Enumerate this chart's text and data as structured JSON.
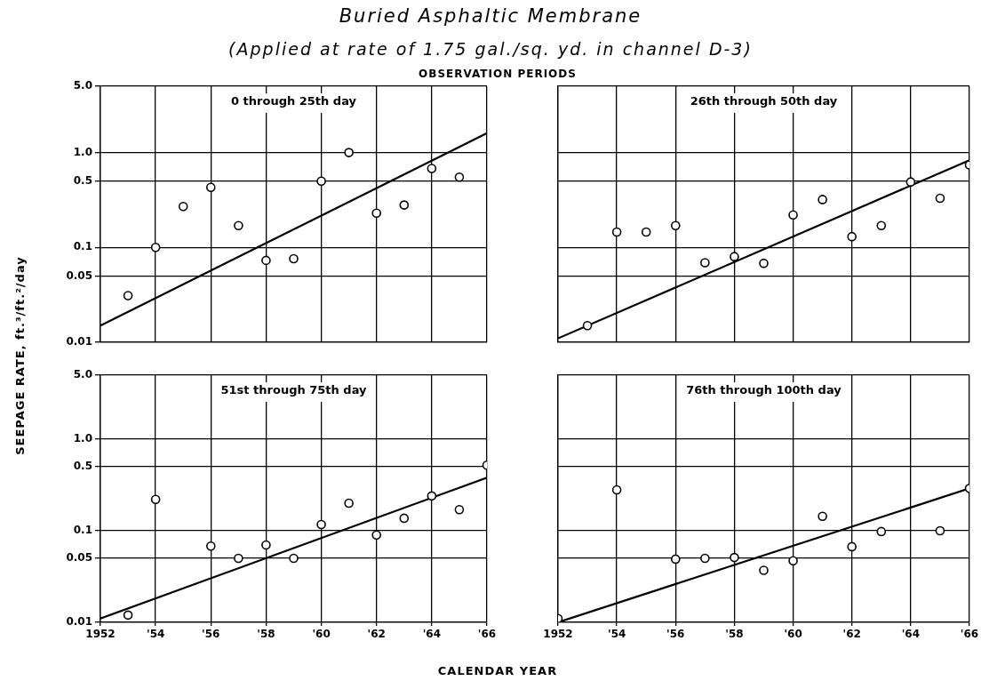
{
  "chart_data": [
    {
      "type": "scatter",
      "title": "Buried Asphaltic Membrane",
      "subtitle": "(Applied at rate of 1.75 gal./sq. yd. in channel D-3)",
      "ylabel": "SEEPAGE RATE, ft.³/ft.²/day",
      "annotations": [
        "OBSERVATION PERIODS",
        "0 through 25th day"
      ],
      "log": "y",
      "grid": true,
      "legend": false,
      "line_style": "solid",
      "tick_labels": "y",
      "xlim": [
        1952,
        1966
      ],
      "xticks": [
        {
          "value": 1952,
          "label": null
        },
        {
          "value": 1954,
          "label": null
        },
        {
          "value": 1956,
          "label": null
        },
        {
          "value": 1958,
          "label": null
        },
        {
          "value": 1960,
          "label": null
        },
        {
          "value": 1962,
          "label": null
        },
        {
          "value": 1964,
          "label": null
        },
        {
          "value": 1966,
          "label": null
        }
      ],
      "ylim": [
        0.01,
        5
      ],
      "yticks": [
        0.01,
        0.05,
        0.1,
        0.5,
        {
          "value": 1,
          "label": "1.0"
        },
        {
          "value": 5,
          "label": "5.0"
        }
      ],
      "series": [
        {
          "marker": "circle",
          "color": "#000000",
          "x": [
            1953,
            1954,
            1955,
            1956,
            1957,
            1958,
            1959,
            1960,
            1961,
            1962,
            1963,
            1964,
            1965
          ],
          "values": [
            0.031,
            0.1,
            0.27,
            0.43,
            0.17,
            0.073,
            0.076,
            0.5,
            1.0,
            0.23,
            0.28,
            0.68,
            0.55
          ]
        },
        {
          "type": "line",
          "marker": "none",
          "color": "#000000",
          "x": [
            1952,
            1966
          ],
          "values": [
            0.015,
            1.6
          ]
        }
      ]
    },
    {
      "type": "scatter",
      "annotations": [
        "26th through 50th day"
      ],
      "log": "y",
      "grid": true,
      "legend": false,
      "line_style": "solid",
      "tick_labels": false,
      "xlim": [
        1952,
        1966
      ],
      "xticks": [
        {
          "value": 1952,
          "label": null
        },
        {
          "value": 1954,
          "label": null
        },
        {
          "value": 1956,
          "label": null
        },
        {
          "value": 1958,
          "label": null
        },
        {
          "value": 1960,
          "label": null
        },
        {
          "value": 1962,
          "label": null
        },
        {
          "value": 1964,
          "label": null
        },
        {
          "value": 1966,
          "label": null
        }
      ],
      "ylim": [
        0.01,
        5
      ],
      "yticks": [
        {
          "value": 0.01,
          "label": null
        },
        {
          "value": 0.05,
          "label": null
        },
        {
          "value": 0.1,
          "label": null
        },
        {
          "value": 0.5,
          "label": null
        },
        {
          "value": 1,
          "label": null
        },
        {
          "value": 5,
          "label": null
        }
      ],
      "series": [
        {
          "marker": "circle",
          "color": "#000000",
          "x": [
            1953,
            1954,
            1955,
            1956,
            1957,
            1958,
            1959,
            1960,
            1961,
            1962,
            1963,
            1964,
            1965,
            1966
          ],
          "values": [
            0.015,
            0.145,
            0.145,
            0.17,
            0.069,
            0.08,
            0.068,
            0.22,
            0.32,
            0.13,
            0.17,
            0.49,
            0.33,
            0.74
          ]
        },
        {
          "type": "line",
          "marker": "none",
          "color": "#000000",
          "x": [
            1952,
            1966
          ],
          "values": [
            0.011,
            0.83
          ]
        }
      ]
    },
    {
      "type": "scatter",
      "xlabel": "CALENDAR YEAR",
      "annotations": [
        "51st through 75th day"
      ],
      "log": "y",
      "grid": true,
      "legend": false,
      "line_style": "solid",
      "xlim": [
        1952,
        1966
      ],
      "xticks": [
        1952,
        {
          "value": 1954,
          "label": "'54"
        },
        {
          "value": 1956,
          "label": "'56"
        },
        {
          "value": 1958,
          "label": "'58"
        },
        {
          "value": 1960,
          "label": "'60"
        },
        {
          "value": 1962,
          "label": "'62"
        },
        {
          "value": 1964,
          "label": "'64"
        },
        {
          "value": 1966,
          "label": "'66"
        }
      ],
      "ylim": [
        0.01,
        5
      ],
      "yticks": [
        0.01,
        0.05,
        0.1,
        0.5,
        {
          "value": 1,
          "label": "1.0"
        },
        {
          "value": 5,
          "label": "5.0"
        }
      ],
      "series": [
        {
          "marker": "circle",
          "color": "#000000",
          "x": [
            1953,
            1954,
            1956,
            1957,
            1958,
            1959,
            1960,
            1961,
            1962,
            1963,
            1964,
            1965,
            1966
          ],
          "values": [
            0.012,
            0.22,
            0.068,
            0.05,
            0.07,
            0.05,
            0.117,
            0.2,
            0.09,
            0.137,
            0.24,
            0.17,
            0.52
          ]
        },
        {
          "type": "line",
          "marker": "none",
          "color": "#000000",
          "x": [
            1952,
            1966
          ],
          "values": [
            0.011,
            0.38
          ]
        }
      ]
    },
    {
      "type": "scatter",
      "annotations": [
        "76th through 100th day"
      ],
      "log": "y",
      "grid": true,
      "legend": false,
      "line_style": "solid",
      "tick_labels": "x",
      "xlim": [
        1952,
        1966
      ],
      "xticks": [
        1952,
        {
          "value": 1954,
          "label": "'54"
        },
        {
          "value": 1956,
          "label": "'56"
        },
        {
          "value": 1958,
          "label": "'58"
        },
        {
          "value": 1960,
          "label": "'60"
        },
        {
          "value": 1962,
          "label": "'62"
        },
        {
          "value": 1964,
          "label": "'64"
        },
        {
          "value": 1966,
          "label": "'66"
        }
      ],
      "ylim": [
        0.01,
        5
      ],
      "yticks": [
        {
          "value": 0.01,
          "label": null
        },
        {
          "value": 0.05,
          "label": null
        },
        {
          "value": 0.1,
          "label": null
        },
        {
          "value": 0.5,
          "label": null
        },
        {
          "value": 1,
          "label": null
        },
        {
          "value": 5,
          "label": null
        }
      ],
      "series": [
        {
          "marker": "circle",
          "color": "#000000",
          "x": [
            1952,
            1954,
            1956,
            1957,
            1958,
            1959,
            1960,
            1961,
            1962,
            1963,
            1965,
            1966
          ],
          "values": [
            0.011,
            0.28,
            0.049,
            0.05,
            0.051,
            0.037,
            0.047,
            0.144,
            0.067,
            0.098,
            0.1,
            0.29
          ]
        },
        {
          "type": "line",
          "marker": "none",
          "color": "#000000",
          "x": [
            1952,
            1966
          ],
          "values": [
            0.01,
            0.29
          ]
        }
      ]
    }
  ]
}
